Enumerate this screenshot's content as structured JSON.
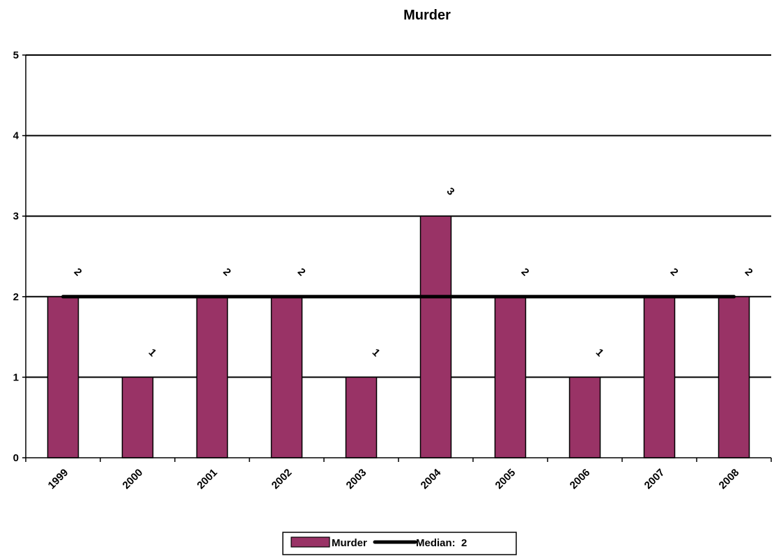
{
  "chart_data": {
    "type": "bar",
    "title": "Murder",
    "categories": [
      "1999",
      "2000",
      "2001",
      "2002",
      "2003",
      "2004",
      "2005",
      "2006",
      "2007",
      "2008"
    ],
    "series": [
      {
        "name": "Murder",
        "type": "bar",
        "values": [
          2,
          1,
          2,
          2,
          1,
          3,
          2,
          1,
          2,
          2
        ],
        "color": "#993366"
      },
      {
        "name": "Median:  2",
        "type": "line",
        "values": [
          2,
          2,
          2,
          2,
          2,
          2,
          2,
          2,
          2,
          2
        ],
        "color": "#000000"
      }
    ],
    "data_labels": [
      "2",
      "1",
      "2",
      "2",
      "1",
      "3",
      "2",
      "1",
      "2",
      "2"
    ],
    "yticks": [
      "0",
      "1",
      "2",
      "3",
      "4",
      "5"
    ],
    "ylim": [
      0,
      5
    ],
    "grid": true,
    "legend_position": "bottom"
  }
}
